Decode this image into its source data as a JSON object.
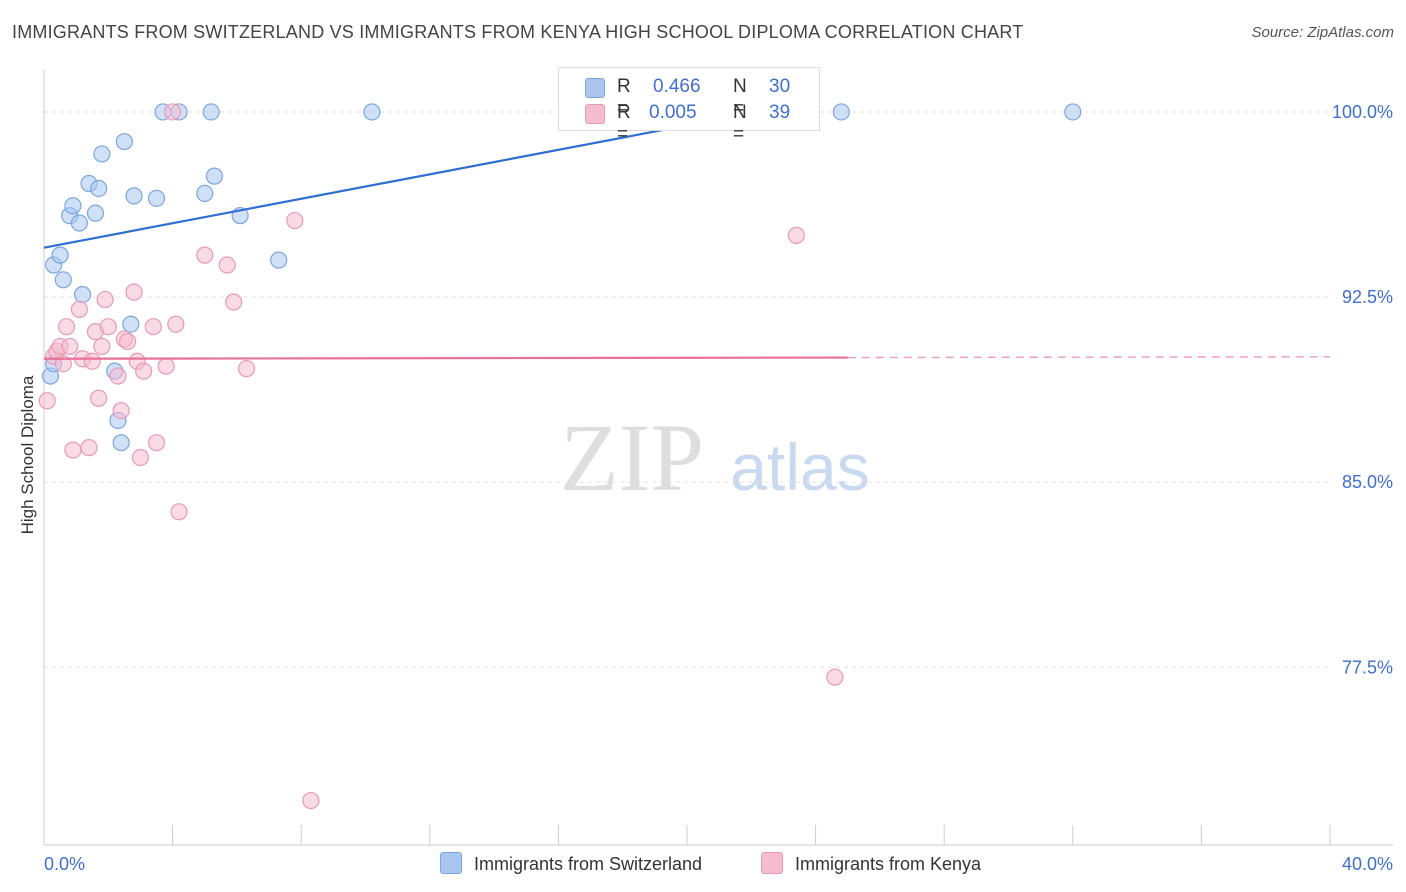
{
  "header": {
    "title": "IMMIGRANTS FROM SWITZERLAND VS IMMIGRANTS FROM KENYA HIGH SCHOOL DIPLOMA CORRELATION CHART",
    "source": "Source: ZipAtlas.com"
  },
  "watermark": {
    "zip": "ZIP",
    "atlas": "atlas"
  },
  "legend": {
    "r_label": "R =",
    "n_label": "N =",
    "series": [
      {
        "r": "0.466",
        "n": "30"
      },
      {
        "r": "0.005",
        "n": "39"
      }
    ]
  },
  "colors": {
    "blue_fill": "#a9c6ef",
    "blue_stroke": "#7aa6e0",
    "blue_line": "#2e6fd1",
    "pink_fill": "#f5bcd0",
    "pink_stroke": "#e89ab6",
    "pink_line": "#e8709a",
    "axis_text": "#3f6fd0",
    "grid": "#e2e2e2"
  },
  "chart_data": {
    "type": "scatter",
    "title": "IMMIGRANTS FROM SWITZERLAND VS IMMIGRANTS FROM KENYA HIGH SCHOOL DIPLOMA CORRELATION CHART",
    "xlabel": "",
    "ylabel": "High School Diploma",
    "xlim": [
      0,
      40
    ],
    "ylim": [
      70.3,
      101.7
    ],
    "x_tick_labels": [
      "0.0%",
      "40.0%"
    ],
    "y_ticks": [
      77.5,
      85.0,
      92.5,
      100.0
    ],
    "y_tick_labels": [
      "77.5%",
      "85.0%",
      "92.5%",
      "100.0%"
    ],
    "grid": true,
    "legend_position": "bottom-center",
    "series": [
      {
        "name": "Immigrants from Switzerland",
        "r": 0.466,
        "n": 30,
        "trend": {
          "x": [
            0,
            23.0
          ],
          "y": [
            94.5,
            100.2
          ],
          "dashed_to": null
        },
        "points": [
          [
            0.2,
            89.3
          ],
          [
            0.3,
            89.8
          ],
          [
            0.3,
            93.8
          ],
          [
            0.5,
            94.2
          ],
          [
            0.6,
            93.2
          ],
          [
            0.8,
            95.8
          ],
          [
            0.9,
            96.2
          ],
          [
            1.1,
            95.5
          ],
          [
            1.2,
            92.6
          ],
          [
            1.4,
            97.1
          ],
          [
            1.6,
            95.9
          ],
          [
            1.7,
            96.9
          ],
          [
            1.8,
            98.3
          ],
          [
            2.2,
            89.5
          ],
          [
            2.3,
            87.5
          ],
          [
            2.4,
            86.6
          ],
          [
            2.5,
            98.8
          ],
          [
            2.7,
            91.4
          ],
          [
            2.8,
            96.6
          ],
          [
            3.5,
            96.5
          ],
          [
            3.7,
            100.0
          ],
          [
            4.2,
            100.0
          ],
          [
            5.0,
            96.7
          ],
          [
            5.2,
            100.0
          ],
          [
            5.3,
            97.4
          ],
          [
            6.1,
            95.8
          ],
          [
            7.3,
            94.0
          ],
          [
            10.2,
            100.0
          ],
          [
            24.8,
            100.0
          ],
          [
            32.0,
            100.0
          ]
        ]
      },
      {
        "name": "Immigrants from Kenya",
        "r": 0.005,
        "n": 39,
        "trend": {
          "x": [
            0,
            25.0
          ],
          "y": [
            90.0,
            90.05
          ],
          "dashed_to": 40
        },
        "points": [
          [
            0.1,
            88.3
          ],
          [
            0.3,
            90.1
          ],
          [
            0.4,
            90.3
          ],
          [
            0.5,
            90.5
          ],
          [
            0.6,
            89.8
          ],
          [
            0.7,
            91.3
          ],
          [
            0.8,
            90.5
          ],
          [
            0.9,
            86.3
          ],
          [
            1.1,
            92.0
          ],
          [
            1.2,
            90.0
          ],
          [
            1.4,
            86.4
          ],
          [
            1.5,
            89.9
          ],
          [
            1.6,
            91.1
          ],
          [
            1.7,
            88.4
          ],
          [
            1.8,
            90.5
          ],
          [
            1.9,
            92.4
          ],
          [
            2.0,
            91.3
          ],
          [
            2.3,
            89.3
          ],
          [
            2.4,
            87.9
          ],
          [
            2.5,
            90.8
          ],
          [
            2.6,
            90.7
          ],
          [
            2.8,
            92.7
          ],
          [
            2.9,
            89.9
          ],
          [
            3.0,
            86.0
          ],
          [
            3.1,
            89.5
          ],
          [
            3.4,
            91.3
          ],
          [
            3.5,
            86.6
          ],
          [
            3.8,
            89.7
          ],
          [
            4.1,
            91.4
          ],
          [
            4.2,
            83.8
          ],
          [
            4.0,
            100.0
          ],
          [
            5.0,
            94.2
          ],
          [
            5.7,
            93.8
          ],
          [
            5.9,
            92.3
          ],
          [
            6.3,
            89.6
          ],
          [
            7.8,
            95.6
          ],
          [
            8.3,
            72.1
          ],
          [
            23.4,
            95.0
          ],
          [
            24.6,
            77.1
          ]
        ]
      }
    ]
  }
}
